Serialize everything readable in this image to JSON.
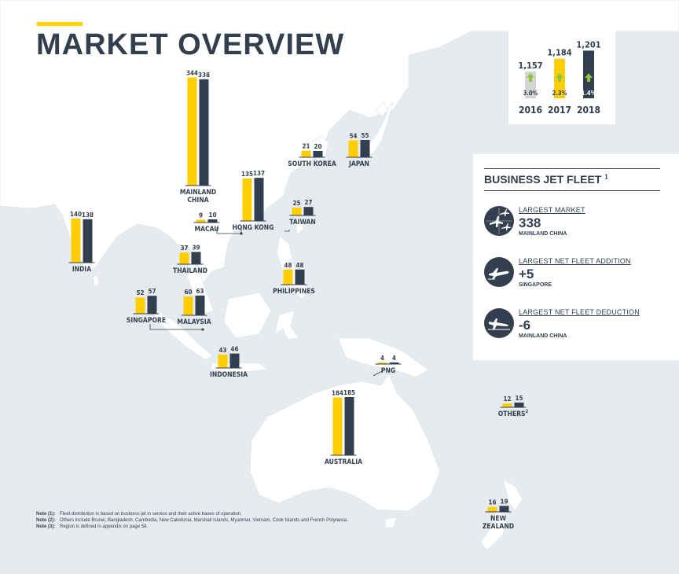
{
  "page": {
    "title": "MARKET OVERVIEW"
  },
  "fleet_totals": {
    "years": [
      "2016",
      "2017",
      "2018"
    ],
    "values": [
      1157,
      1184,
      1201
    ],
    "value_labels": [
      "1,157",
      "1,184",
      "1,201"
    ],
    "growth_labels": [
      "3.0%",
      "2.3%",
      "1.4%"
    ]
  },
  "panel": {
    "title": "BUSINESS JET FLEET",
    "title_note": "1",
    "stats": [
      {
        "caption": "LARGEST MARKET",
        "value": "338",
        "sub": "MAINLAND CHINA",
        "icon": "airport-icon"
      },
      {
        "caption": "LARGEST NET FLEET ADDITION",
        "value": "+5",
        "sub": "SINGAPORE",
        "icon": "plane-takeoff-icon"
      },
      {
        "caption": "LARGEST NET FLEET DEDUCTION",
        "value": "-6",
        "sub": "MAINLAND CHINA",
        "icon": "plane-landing-icon"
      }
    ]
  },
  "notes": [
    {
      "label": "Note (1):",
      "text": "Fleet distribution is based on business jet in service and their active bases of operation."
    },
    {
      "label": "Note (2):",
      "text": "Others include Brunei, Bangladesh, Cambodia, New Caledonia, Marshall Islands, Myanmar, Vietnam, Cook Islands and French Polynesia."
    },
    {
      "label": "Note (3):",
      "text": "Region is defined in appendix on page 58."
    }
  ],
  "colors": {
    "bar_2017": "#ffcd00",
    "bar_2018": "#333f4f",
    "bar_2016": "#d4d4d4",
    "growth_arrow": "#8dc63f",
    "land": "#ffffff",
    "sea": "#e6ebef"
  },
  "chart_data": {
    "type": "bar",
    "series": [
      {
        "name": "2017",
        "color": "#ffcd00"
      },
      {
        "name": "2018",
        "color": "#333f4f"
      }
    ],
    "markets": [
      {
        "name": "MAINLAND CHINA",
        "label_lines": [
          "MAINLAND",
          "CHINA"
        ],
        "v2017": 344,
        "v2018": 338
      },
      {
        "name": "SOUTH KOREA",
        "label_lines": [
          "SOUTH KOREA"
        ],
        "v2017": 21,
        "v2018": 20
      },
      {
        "name": "JAPAN",
        "label_lines": [
          "JAPAN"
        ],
        "v2017": 54,
        "v2018": 55
      },
      {
        "name": "HONG KONG",
        "label_lines": [
          "HONG KONG"
        ],
        "v2017": 135,
        "v2018": 137
      },
      {
        "name": "MACAU",
        "label_lines": [
          "MACAU"
        ],
        "v2017": 9,
        "v2018": 10
      },
      {
        "name": "TAIWAN",
        "label_lines": [
          "TAIWAN"
        ],
        "v2017": 25,
        "v2018": 27
      },
      {
        "name": "INDIA",
        "label_lines": [
          "INDIA"
        ],
        "v2017": 140,
        "v2018": 138
      },
      {
        "name": "THAILAND",
        "label_lines": [
          "THAILAND"
        ],
        "v2017": 37,
        "v2018": 39
      },
      {
        "name": "PHILIPPINES",
        "label_lines": [
          "PHILIPPINES"
        ],
        "v2017": 48,
        "v2018": 48
      },
      {
        "name": "SINGAPORE",
        "label_lines": [
          "SINGAPORE"
        ],
        "v2017": 52,
        "v2018": 57
      },
      {
        "name": "MALAYSIA",
        "label_lines": [
          "MALAYSIA"
        ],
        "v2017": 60,
        "v2018": 63
      },
      {
        "name": "INDONESIA",
        "label_lines": [
          "INDONESIA"
        ],
        "v2017": 43,
        "v2018": 46
      },
      {
        "name": "PNG",
        "label_lines": [
          "PNG"
        ],
        "v2017": 4,
        "v2018": 4
      },
      {
        "name": "AUSTRALIA",
        "label_lines": [
          "AUSTRALIA"
        ],
        "v2017": 184,
        "v2018": 185
      },
      {
        "name": "OTHERS",
        "label_lines": [
          "OTHERS"
        ],
        "label_note": "2",
        "v2017": 12,
        "v2018": 15
      },
      {
        "name": "NEW ZEALAND",
        "label_lines": [
          "NEW",
          "ZEALAND"
        ],
        "v2017": 16,
        "v2018": 19
      }
    ]
  }
}
